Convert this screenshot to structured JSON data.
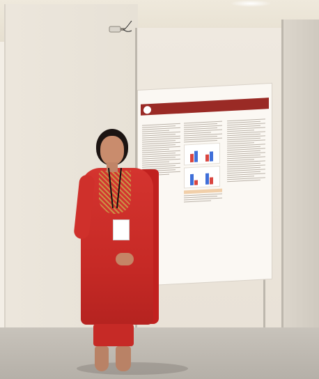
{
  "photo": {
    "subject": "",
    "setting": ""
  },
  "poster": {
    "title": "",
    "authors": "",
    "sections": [
      {
        "heading": ""
      },
      {
        "heading": ""
      },
      {
        "heading": ""
      },
      {
        "heading": ""
      },
      {
        "heading": ""
      },
      {
        "heading": ""
      }
    ],
    "colors": {
      "header": "#9a2a25",
      "chart_bar_red": "#d9453f",
      "chart_bar_blue": "#3f6fd9"
    }
  },
  "colors": {
    "booth_wall": "#ece6dc",
    "kurta": "#d4342f",
    "floor": "#c8c3bb"
  }
}
